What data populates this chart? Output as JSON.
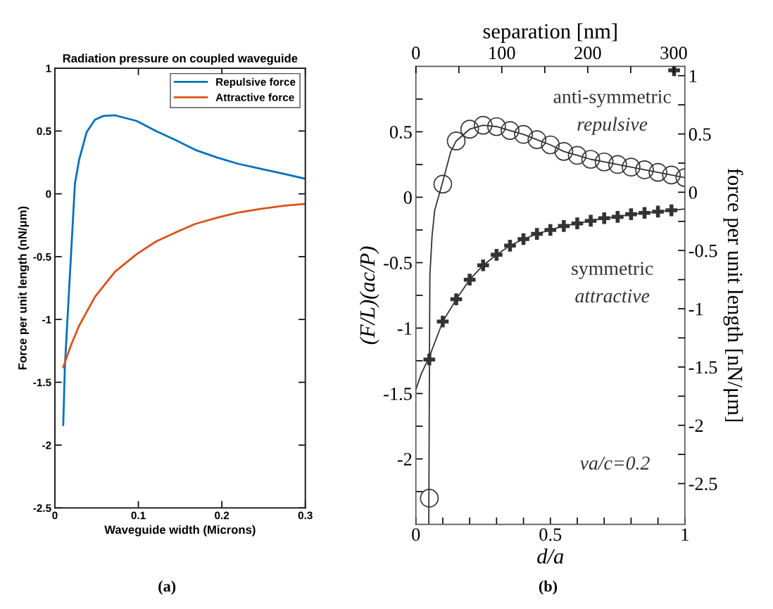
{
  "chart_data": [
    {
      "type": "line",
      "title": "Radiation pressure on coupled waveguide",
      "xlabel": "Waveguide width (Microns)",
      "ylabel": "Force per unit length (nN/μm)",
      "xlim": [
        0,
        0.3
      ],
      "xticks": [
        0,
        0.1,
        0.2,
        0.3
      ],
      "ylim": [
        -2.5,
        1
      ],
      "yticks": [
        -2.5,
        -2,
        -1.5,
        -1,
        -0.5,
        0,
        0.5,
        1
      ],
      "legend": "top right",
      "grid": false,
      "annotations": [
        "(a)"
      ],
      "series": [
        {
          "name": "Repulsive force",
          "color": "#0072bd",
          "x": [
            0.01,
            0.012,
            0.024,
            0.029,
            0.038,
            0.048,
            0.058,
            0.072,
            0.098,
            0.121,
            0.147,
            0.168,
            0.194,
            0.219,
            0.246,
            0.274,
            0.3
          ],
          "values": [
            -1.84,
            -1.37,
            0.08,
            0.27,
            0.49,
            0.59,
            0.62,
            0.625,
            0.58,
            0.5,
            0.42,
            0.35,
            0.29,
            0.24,
            0.2,
            0.16,
            0.12
          ]
        },
        {
          "name": "Attractive force",
          "color": "#d95319",
          "x": [
            0.01,
            0.019,
            0.029,
            0.048,
            0.072,
            0.098,
            0.121,
            0.147,
            0.168,
            0.194,
            0.219,
            0.246,
            0.274,
            0.3
          ],
          "values": [
            -1.38,
            -1.21,
            -1.05,
            -0.82,
            -0.62,
            -0.48,
            -0.38,
            -0.3,
            -0.24,
            -0.19,
            -0.15,
            -0.12,
            -0.095,
            -0.08
          ]
        }
      ]
    },
    {
      "type": "line",
      "xlabel": "d/a",
      "x2label": "separation [nm]",
      "ylabel": "(F/L)(ac/P)",
      "y2label": "force per unit length [nN/μm]",
      "xlim": [
        0,
        1
      ],
      "xticks": [
        0,
        {
          "value": 0.1,
          "label": null
        },
        {
          "value": 0.2,
          "label": null
        },
        {
          "value": 0.3,
          "label": null
        },
        {
          "value": 0.4,
          "label": null
        },
        0.5,
        {
          "value": 0.6,
          "label": null
        },
        {
          "value": 0.7,
          "label": null
        },
        {
          "value": 0.8,
          "label": null
        },
        {
          "value": 0.9,
          "label": null
        },
        1
      ],
      "x2lim": [
        0,
        313
      ],
      "x2ticks": [
        0,
        {
          "value": 50,
          "label": null
        },
        100,
        {
          "value": 150,
          "label": null
        },
        200,
        {
          "value": 250,
          "label": null
        },
        300
      ],
      "ylim": [
        -2.5,
        1
      ],
      "yticks": [
        {
          "value": -2.25,
          "label": null
        },
        -2,
        {
          "value": -1.75,
          "label": null
        },
        -1.5,
        {
          "value": -1.25,
          "label": null
        },
        -1,
        {
          "value": -0.75,
          "label": null
        },
        -0.5,
        {
          "value": -0.25,
          "label": null
        },
        0,
        {
          "value": 0.25,
          "label": null
        },
        0.5,
        {
          "value": 0.75,
          "label": null
        }
      ],
      "y2lim": [
        -2.85,
        1.08
      ],
      "y2ticks": [
        -2.5,
        {
          "value": -2.25,
          "label": null
        },
        -2,
        {
          "value": -1.75,
          "label": null
        },
        -1.5,
        {
          "value": -1.25,
          "label": null
        },
        -1,
        {
          "value": -0.75,
          "label": null
        },
        -0.5,
        {
          "value": -0.25,
          "label": null
        },
        0,
        {
          "value": 0.25,
          "label": null
        },
        0.5,
        {
          "value": 0.75,
          "label": null
        },
        1
      ],
      "grid": false,
      "annotations": [
        "anti-symmetric",
        "repulsive",
        "symmetric",
        "attractive",
        "νa/c=0.2",
        "(b)"
      ],
      "series": [
        {
          "type": "line",
          "color": "#333333",
          "line_style": "solid",
          "marker": "none",
          "x": [
            0.048,
            0.05,
            0.052,
            0.06,
            0.07,
            0.1,
            0.13,
            0.15,
            0.2,
            0.25,
            0.3,
            0.35,
            0.4,
            0.45,
            0.5,
            0.55,
            0.6,
            0.65,
            0.7,
            0.75,
            0.8,
            0.85,
            0.9,
            0.95,
            1.0
          ],
          "values": [
            -2.5,
            -1.5,
            -0.6,
            -0.3,
            -0.1,
            0.12,
            0.35,
            0.43,
            0.52,
            0.55,
            0.54,
            0.51,
            0.48,
            0.44,
            0.4,
            0.35,
            0.32,
            0.29,
            0.27,
            0.25,
            0.23,
            0.21,
            0.19,
            0.17,
            0.15
          ]
        },
        {
          "type": "scatter",
          "color": "#333333",
          "marker": "circle",
          "x": [
            0.05,
            0.1,
            0.15,
            0.2,
            0.25,
            0.3,
            0.35,
            0.4,
            0.45,
            0.5,
            0.55,
            0.6,
            0.65,
            0.7,
            0.75,
            0.8,
            0.85,
            0.9,
            0.95,
            1.0
          ],
          "values": [
            -2.3,
            0.1,
            0.43,
            0.52,
            0.55,
            0.54,
            0.51,
            0.48,
            0.44,
            0.4,
            0.35,
            0.32,
            0.29,
            0.27,
            0.25,
            0.23,
            0.21,
            0.19,
            0.17,
            0.15
          ]
        },
        {
          "type": "line",
          "color": "#333333",
          "line_style": "solid",
          "marker": "none",
          "x": [
            0,
            0.02,
            0.05,
            0.1,
            0.15,
            0.2,
            0.25,
            0.3,
            0.35,
            0.4,
            0.45,
            0.5,
            0.55,
            0.6,
            0.65,
            0.7,
            0.75,
            0.8,
            0.85,
            0.9,
            0.95,
            1.0
          ],
          "values": [
            -1.47,
            -1.35,
            -1.22,
            -0.95,
            -0.78,
            -0.63,
            -0.52,
            -0.44,
            -0.37,
            -0.32,
            -0.28,
            -0.25,
            -0.22,
            -0.2,
            -0.18,
            -0.16,
            -0.15,
            -0.13,
            -0.12,
            -0.11,
            -0.1,
            -0.09
          ]
        },
        {
          "type": "scatter",
          "color": "#333333",
          "marker": "cross",
          "x": [
            0.05,
            0.1,
            0.15,
            0.2,
            0.25,
            0.3,
            0.35,
            0.4,
            0.45,
            0.5,
            0.55,
            0.6,
            0.65,
            0.7,
            0.75,
            0.8,
            0.85,
            0.9,
            0.95,
            0.96
          ],
          "values": [
            -1.24,
            -0.95,
            -0.78,
            -0.63,
            -0.52,
            -0.44,
            -0.37,
            -0.32,
            -0.28,
            -0.25,
            -0.22,
            -0.2,
            -0.18,
            -0.16,
            -0.15,
            -0.13,
            -0.12,
            -0.11,
            -0.1,
            0.97
          ]
        }
      ]
    }
  ]
}
